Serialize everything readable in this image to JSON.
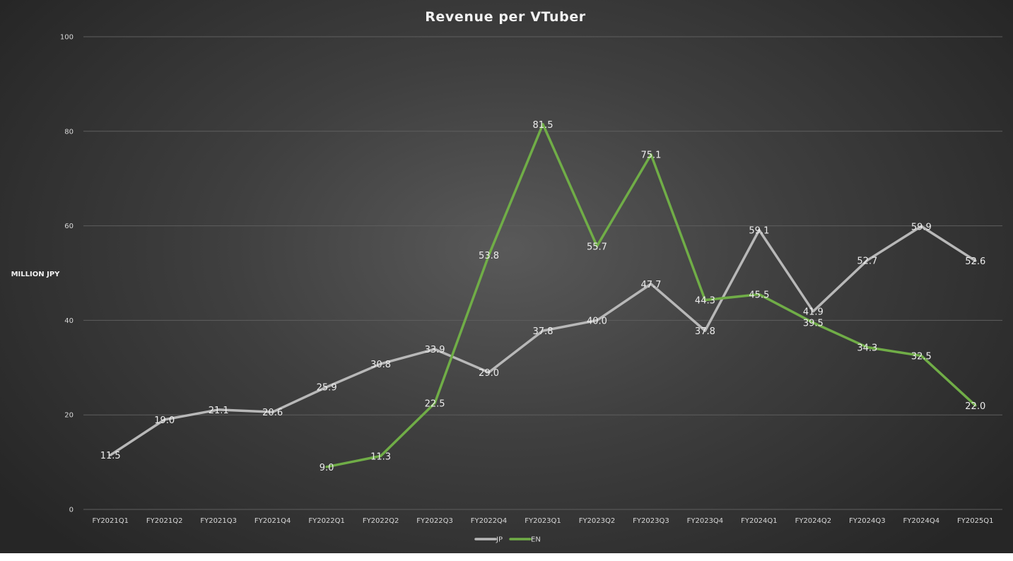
{
  "chart_data": {
    "type": "line",
    "title": "Revenue per VTuber",
    "xlabel": "",
    "ylabel": "MILLION JPY",
    "ylim": [
      0,
      100
    ],
    "yticks": [
      0,
      20,
      40,
      60,
      80,
      100
    ],
    "grid": true,
    "legend": "bottom",
    "data_labels": true,
    "categories": [
      "FY2021Q1",
      "FY2021Q2",
      "FY2021Q3",
      "FY2021Q4",
      "FY2022Q1",
      "FY2022Q2",
      "FY2022Q3",
      "FY2022Q4",
      "FY2023Q1",
      "FY2023Q2",
      "FY2023Q3",
      "FY2023Q4",
      "FY2024Q1",
      "FY2024Q2",
      "FY2024Q3",
      "FY2024Q4",
      "FY2025Q1"
    ],
    "series": [
      {
        "name": "JP",
        "color": "#b8b8b8",
        "values": [
          11.5,
          19.0,
          21.1,
          20.6,
          25.9,
          30.8,
          33.9,
          29.0,
          37.8,
          40.0,
          47.7,
          37.8,
          59.1,
          41.9,
          52.7,
          59.9,
          52.6
        ]
      },
      {
        "name": "EN",
        "color": "#70ad47",
        "values": [
          null,
          null,
          null,
          null,
          9.0,
          11.3,
          22.5,
          53.8,
          81.5,
          55.7,
          75.1,
          44.3,
          45.5,
          39.5,
          34.3,
          32.5,
          22.0
        ]
      }
    ]
  }
}
